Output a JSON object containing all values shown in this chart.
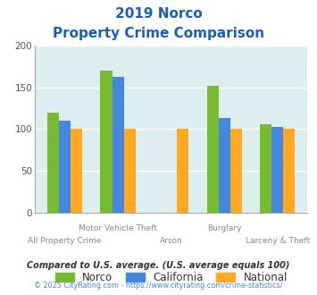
{
  "title_line1": "2019 Norco",
  "title_line2": "Property Crime Comparison",
  "categories": [
    "All Property Crime",
    "Motor Vehicle Theft",
    "Arson",
    "Burglary",
    "Larceny & Theft"
  ],
  "norco": [
    120,
    170,
    0,
    152,
    106
  ],
  "california": [
    110,
    163,
    0,
    113,
    103
  ],
  "national": [
    100,
    100,
    100,
    100,
    100
  ],
  "norco_color": "#77bb33",
  "california_color": "#4488dd",
  "national_color": "#ffaa22",
  "title_color": "#1a5fb4",
  "bg_color": "#ffffff",
  "plot_bg": "#ddeef0",
  "ylim": [
    0,
    200
  ],
  "yticks": [
    0,
    50,
    100,
    150,
    200
  ],
  "footnote1": "Compared to U.S. average. (U.S. average equals 100)",
  "footnote2": "© 2025 CityRating.com - https://www.cityrating.com/crime-statistics/",
  "footnote1_color": "#333333",
  "footnote2_color": "#4488dd",
  "bar_width": 0.22
}
